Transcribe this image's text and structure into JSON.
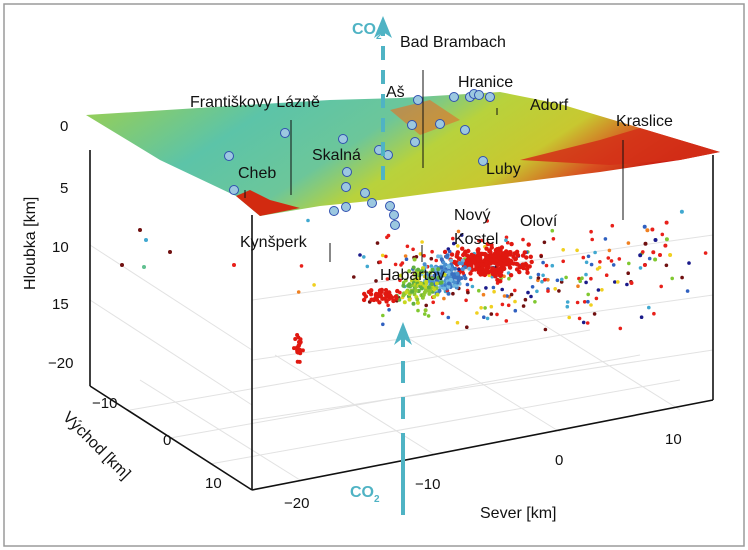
{
  "chart_data": {
    "type": "scatter",
    "subtype": "3d-scatter-with-terrain-surface",
    "axes": {
      "z": {
        "label": "Hloubka [km]",
        "ticks": [
          "0",
          "5",
          "10",
          "15"
        ],
        "range": [
          0,
          20
        ]
      },
      "y": {
        "label": "Východ [km]",
        "ticks": [
          "−20",
          "−10",
          "0",
          "10"
        ],
        "range": [
          -20,
          10
        ]
      },
      "x": {
        "label": "Sever [km]",
        "ticks": [
          "−20",
          "−10",
          "0",
          "10"
        ],
        "range": [
          -25,
          15
        ]
      }
    },
    "annotations": {
      "co2_top": {
        "text": "CO",
        "sub": "2"
      },
      "co2_bottom": {
        "text": "CO",
        "sub": "2"
      }
    },
    "places": [
      "Bad Brambach",
      "Aš",
      "Hranice",
      "Františkovy Lázně",
      "Adorf",
      "Kraslice",
      "Skalná",
      "Cheb",
      "Luby",
      "Nový",
      "Kostel",
      "Oloví",
      "Kynšperk",
      "Habartov"
    ],
    "grid": true,
    "colors": {
      "co2_arrow": "#4fb3c4",
      "terrain_low": "#4fc0b0",
      "terrain_mid": "#a8d040",
      "terrain_high": "#d42010"
    }
  }
}
